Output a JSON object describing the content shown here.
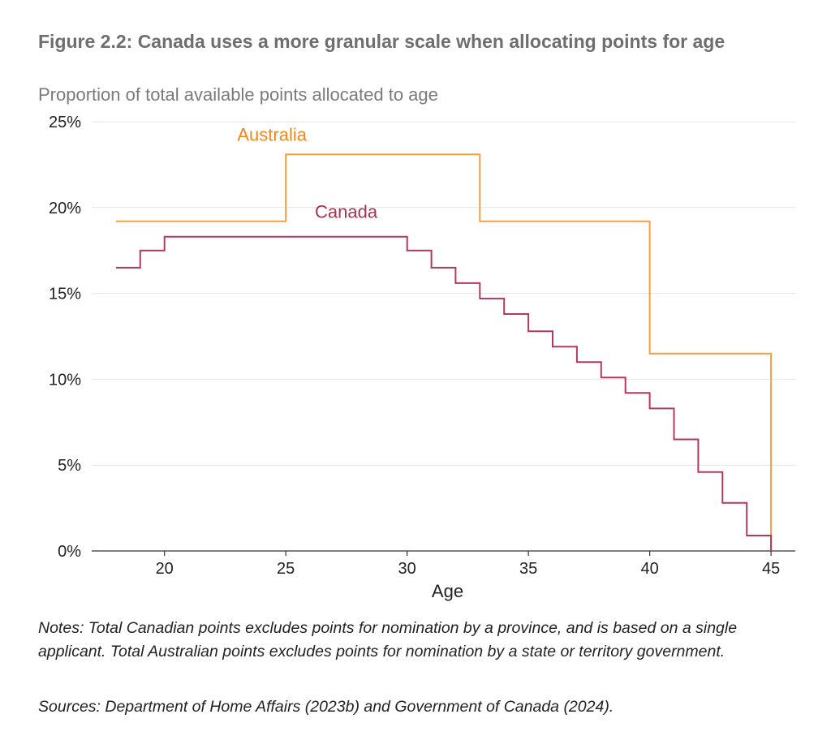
{
  "title": "Figure 2.2: Canada uses a more granular scale when allocating points for age",
  "subtitle": "Proportion of total available points allocated to age",
  "notes": "Notes: Total Canadian points excludes points for nomination by a province, and is based on a single applicant. Total Australian points excludes points for nomination by a state or territory government.",
  "sources": "Sources: Department of Home Affairs (2023b) and Government of Canada (2024).",
  "chart_data": {
    "type": "line",
    "step": true,
    "xlabel": "Age",
    "ylabel": "",
    "xlim": [
      17,
      46
    ],
    "ylim": [
      0,
      25
    ],
    "x_ticks": [
      20,
      25,
      30,
      35,
      40,
      45
    ],
    "y_ticks": [
      0,
      5,
      10,
      15,
      20,
      25
    ],
    "y_tick_labels": [
      "0%",
      "5%",
      "10%",
      "15%",
      "20%",
      "25%"
    ],
    "grid": "horizontal",
    "series": [
      {
        "name": "Australia",
        "color": "#f0a040",
        "label_color": "#e8891c",
        "points": [
          [
            18,
            19.2
          ],
          [
            25,
            19.2
          ],
          [
            25,
            23.1
          ],
          [
            33,
            23.1
          ],
          [
            33,
            19.2
          ],
          [
            40,
            19.2
          ],
          [
            40,
            11.5
          ],
          [
            45,
            11.5
          ],
          [
            45,
            0
          ]
        ]
      },
      {
        "name": "Canada",
        "color": "#b03a5e",
        "label_color": "#a8324f",
        "points": [
          [
            18,
            16.5
          ],
          [
            19,
            16.5
          ],
          [
            19,
            17.5
          ],
          [
            20,
            17.5
          ],
          [
            20,
            18.3
          ],
          [
            30,
            18.3
          ],
          [
            30,
            17.5
          ],
          [
            31,
            17.5
          ],
          [
            31,
            16.5
          ],
          [
            32,
            16.5
          ],
          [
            32,
            15.6
          ],
          [
            33,
            15.6
          ],
          [
            33,
            14.7
          ],
          [
            34,
            14.7
          ],
          [
            34,
            13.8
          ],
          [
            35,
            13.8
          ],
          [
            35,
            12.8
          ],
          [
            36,
            12.8
          ],
          [
            36,
            11.9
          ],
          [
            37,
            11.9
          ],
          [
            37,
            11.0
          ],
          [
            38,
            11.0
          ],
          [
            38,
            10.1
          ],
          [
            39,
            10.1
          ],
          [
            39,
            9.2
          ],
          [
            40,
            9.2
          ],
          [
            40,
            8.3
          ],
          [
            41,
            8.3
          ],
          [
            41,
            6.5
          ],
          [
            42,
            6.5
          ],
          [
            42,
            4.6
          ],
          [
            43,
            4.6
          ],
          [
            43,
            2.8
          ],
          [
            44,
            2.8
          ],
          [
            44,
            0.9
          ],
          [
            45,
            0.9
          ],
          [
            45,
            0
          ]
        ]
      }
    ]
  }
}
